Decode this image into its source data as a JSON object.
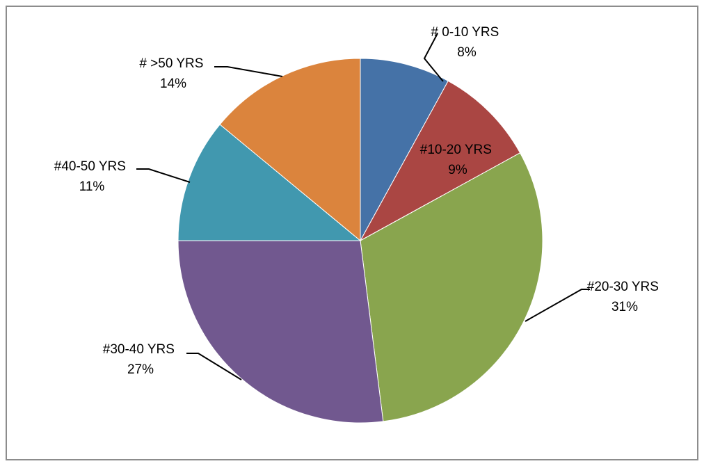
{
  "chart_data": {
    "type": "pie",
    "title": "",
    "categories": [
      "# 0-10 YRS",
      "#10-20 YRS",
      "#20-30 YRS",
      "#30-40 YRS",
      "#40-50 YRS",
      "# >50 YRS"
    ],
    "values": [
      8,
      9,
      31,
      27,
      11,
      14
    ],
    "value_labels": [
      "8%",
      "9%",
      "31%",
      "27%",
      "11%",
      "14%"
    ],
    "colors": [
      "#4572A7",
      "#AA4643",
      "#89A54E",
      "#71588F",
      "#4198AF",
      "#DB843D"
    ],
    "start_angle": "12 o'clock",
    "direction": "clockwise",
    "legend": "none",
    "label_style": "category name and percentage with leader lines"
  }
}
